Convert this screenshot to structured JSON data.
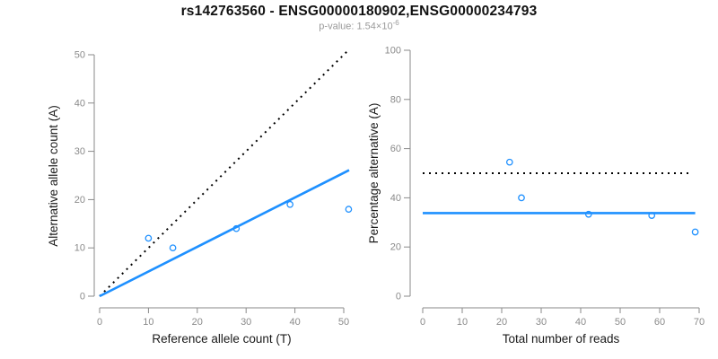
{
  "header": {
    "title": "rs142763560 - ENSG00000180902,ENSG00000234793",
    "p_value_base": "p-value: 1.54×10",
    "p_value_exponent": "-6"
  },
  "colors": {
    "accent_blue": "#1E90FF",
    "line_black": "#000000",
    "axis_gray": "#8a8a8a"
  },
  "chart_data": [
    {
      "type": "scatter",
      "panel": "left",
      "title": "",
      "xlabel": "Reference allele count (T)",
      "ylabel": "Alternative allele count (A)",
      "xlim": [
        0,
        51.5
      ],
      "ylim": [
        0,
        51
      ],
      "xticks": [
        0,
        10,
        20,
        30,
        40,
        50
      ],
      "yticks": [
        0,
        10,
        20,
        30,
        40,
        50
      ],
      "grid": false,
      "points": [
        [
          10,
          12
        ],
        [
          15,
          10
        ],
        [
          28,
          14
        ],
        [
          39,
          19
        ],
        [
          51,
          18
        ]
      ],
      "lines": [
        {
          "name": "identity-line",
          "style": "dotted",
          "color": "#000000",
          "from": [
            0,
            0
          ],
          "to": [
            50.8,
            50.8
          ]
        },
        {
          "name": "allelic-ratio-fit-line",
          "style": "solid",
          "color": "#1E90FF",
          "from": [
            0,
            0
          ],
          "to": [
            51.1,
            26.1
          ]
        }
      ]
    },
    {
      "type": "scatter",
      "panel": "right",
      "title": "",
      "xlabel": "Total number of reads",
      "ylabel": "Percentage alternative (A)",
      "xlim": [
        0,
        70
      ],
      "ylim": [
        0,
        100
      ],
      "xticks": [
        0,
        10,
        20,
        30,
        40,
        50,
        60,
        70
      ],
      "yticks": [
        0,
        20,
        40,
        60,
        80,
        100
      ],
      "grid": false,
      "points": [
        [
          22,
          54.5
        ],
        [
          25,
          40
        ],
        [
          42,
          33.3
        ],
        [
          58,
          32.8
        ],
        [
          69,
          26.1
        ]
      ],
      "lines": [
        {
          "name": "expected-50-percent-line",
          "style": "dotted",
          "color": "#000000",
          "from": [
            0,
            50
          ],
          "to": [
            67.5,
            50
          ]
        },
        {
          "name": "mean-percentage-line",
          "style": "solid",
          "color": "#1E90FF",
          "from": [
            0,
            33.8
          ],
          "to": [
            69,
            33.8
          ]
        }
      ]
    }
  ]
}
